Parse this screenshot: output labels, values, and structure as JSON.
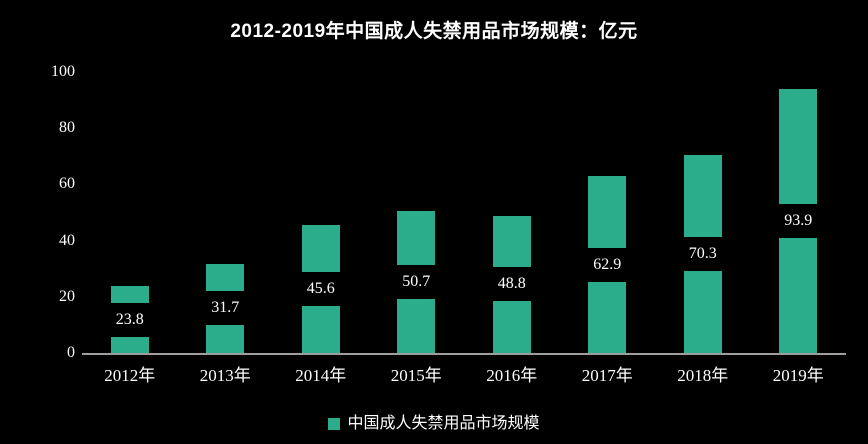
{
  "chart_data": {
    "type": "bar",
    "title": "2012-2019年中国成人失禁用品市场规模：亿元",
    "categories": [
      "2012年",
      "2013年",
      "2014年",
      "2015年",
      "2016年",
      "2017年",
      "2018年",
      "2019年"
    ],
    "values": [
      23.8,
      31.7,
      45.6,
      50.7,
      48.8,
      62.9,
      70.3,
      93.9
    ],
    "series_name": "中国成人失禁用品市场规模",
    "xlabel": "",
    "ylabel": "",
    "ylim": [
      0,
      100
    ],
    "yticks": [
      0,
      20,
      40,
      60,
      80,
      100
    ],
    "grid": false,
    "legend_position": "bottom",
    "value_label_position": "inside-center",
    "colors": {
      "background": "#000000",
      "bar": "#2BAD8B",
      "text": "#FFFFFF",
      "axis_line": "#9E9E9E"
    }
  }
}
